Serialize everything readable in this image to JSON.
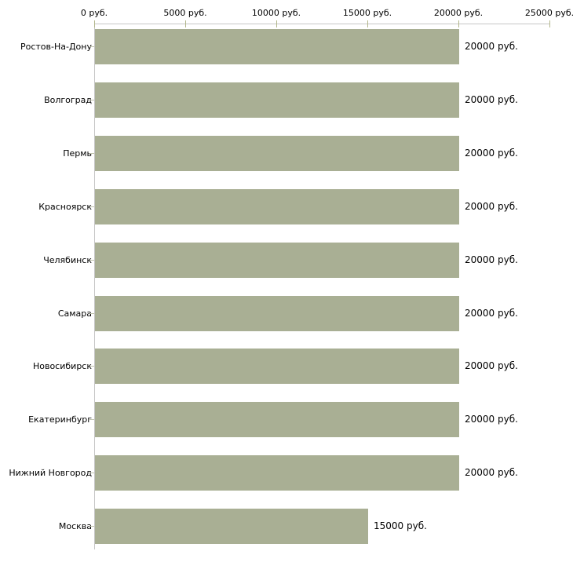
{
  "chart_data": {
    "type": "bar",
    "orientation": "horizontal",
    "title": "",
    "categories": [
      "Ростов-На-Дону",
      "Волгоград",
      "Пермь",
      "Красноярск",
      "Челябинск",
      "Самара",
      "Новосибирск",
      "Екатеринбург",
      "Нижний Новгород",
      "Москва"
    ],
    "values": [
      20000,
      20000,
      20000,
      20000,
      20000,
      20000,
      20000,
      20000,
      20000,
      15000
    ],
    "value_labels": [
      "20000 руб.",
      "20000 руб.",
      "20000 руб.",
      "20000 руб.",
      "20000 руб.",
      "20000 руб.",
      "20000 руб.",
      "20000 руб.",
      "20000 руб.",
      "15000 руб."
    ],
    "x_axis": {
      "position": "top",
      "range": [
        0,
        25000
      ],
      "ticks": [
        0,
        5000,
        10000,
        15000,
        20000,
        25000
      ],
      "tick_labels": [
        "0 руб.",
        "5000 руб.",
        "10000 руб.",
        "15000 руб.",
        "20000 руб.",
        "25000 руб."
      ]
    },
    "grid": false,
    "legend": false,
    "colors": {
      "bar": "#a9af94",
      "axis_line": "#c6c6c6",
      "tick_mark": "#b2b68a",
      "category_tick": "#c0c3ae",
      "text": "#000000",
      "background": "#ffffff"
    }
  }
}
